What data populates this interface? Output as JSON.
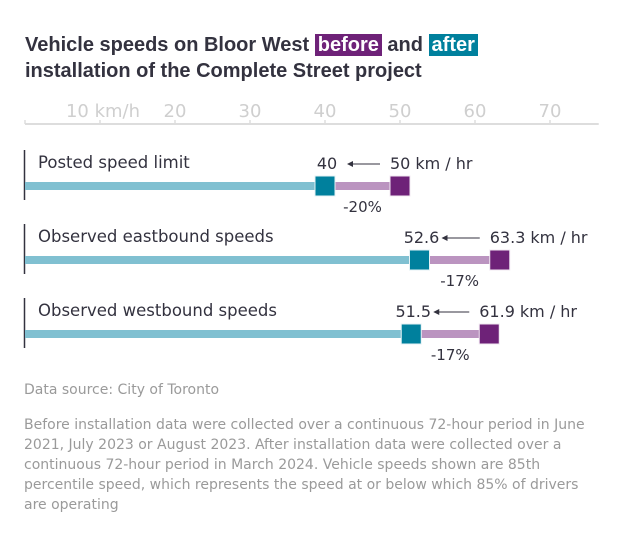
{
  "title": {
    "part1": "Vehicle speeds on Bloor West",
    "before_word": "before",
    "and_word": "and",
    "after_word": "after",
    "line2": "installation of the Complete Street project"
  },
  "colors": {
    "before": "#6e2278",
    "after": "#00809d",
    "track": "#80c0d1",
    "change": "#bb94c0",
    "axis": "#dddddd",
    "text": "#33323f"
  },
  "chart_data": {
    "type": "dumbbell",
    "title": "Vehicle speeds on Bloor West before and after installation of the Complete Street project",
    "xlabel": "km/h",
    "xlim": [
      0,
      76.5
    ],
    "xticks": [
      0,
      10,
      20,
      30,
      40,
      50,
      60,
      70
    ],
    "xtick_labels": [
      "",
      "10 km/h",
      "20",
      "30",
      "40",
      "50",
      "60",
      "70"
    ],
    "unit_suffix": "km / hr",
    "arrow": "←",
    "rows": [
      {
        "label": "Posted speed limit",
        "before": 50,
        "after": 40,
        "before_label": "50",
        "after_label": "40",
        "change": "-20%"
      },
      {
        "label": "Observed eastbound speeds",
        "before": 63.3,
        "after": 52.6,
        "before_label": "63.3",
        "after_label": "52.6",
        "change": "-17%"
      },
      {
        "label": "Observed westbound speeds",
        "before": 61.9,
        "after": 51.5,
        "before_label": "61.9",
        "after_label": "51.5",
        "change": "-17%"
      }
    ]
  },
  "footer": {
    "source": "Data source: City of Toronto",
    "note": "Before installation data were collected over a continuous 72-hour period in June 2021, July 2023 or August 2023. After installation data were collected over a continuous 72-hour period in March 2024. Vehicle speeds shown are 85th percentile speed, which represents the speed at or below which 85% of drivers are operating"
  }
}
